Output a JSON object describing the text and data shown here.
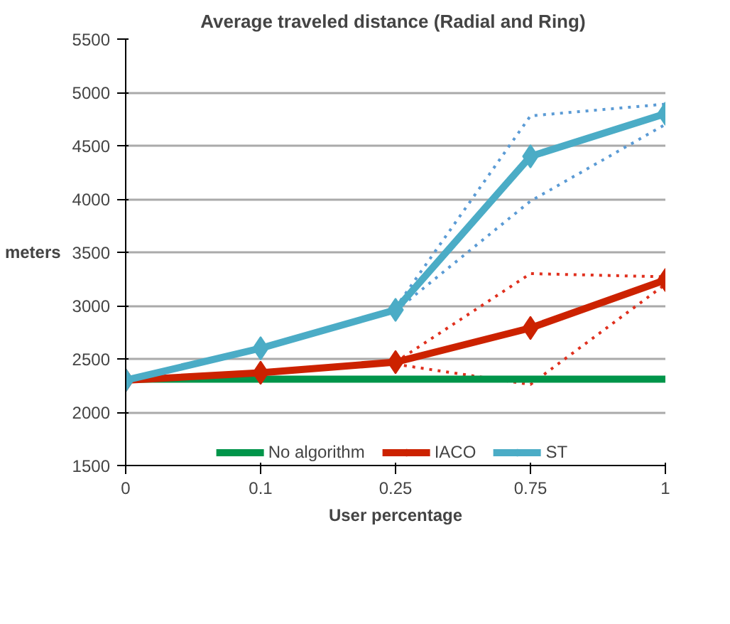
{
  "chart_data": {
    "type": "line",
    "title": "Average traveled distance  (Radial and Ring)",
    "xlabel": "User percentage",
    "ylabel": "meters",
    "categories": [
      "0",
      "0.1",
      "0.25",
      "0.75",
      "1"
    ],
    "ylim": [
      1500,
      5500
    ],
    "yticks": [
      1500,
      2000,
      2500,
      3000,
      3500,
      4000,
      4500,
      5000,
      5500
    ],
    "grid": "y",
    "legend": "bottom",
    "series": [
      {
        "color": "#5b9bd5",
        "values": [
          null,
          null,
          2980,
          4780,
          4890
        ],
        "line_style": "dotted",
        "marker": "none"
      },
      {
        "color": "#5b9bd5",
        "values": [
          null,
          null,
          2950,
          3980,
          4700
        ],
        "line_style": "dotted",
        "marker": "none"
      },
      {
        "color": "#e0301e",
        "values": [
          null,
          null,
          2470,
          3300,
          3270
        ],
        "line_style": "dotted",
        "marker": "none"
      },
      {
        "color": "#e0301e",
        "values": [
          null,
          null,
          2450,
          2260,
          3200
        ],
        "line_style": "dotted",
        "marker": "none"
      },
      {
        "name": "No algorithm",
        "color": "#00954a",
        "values": [
          2310,
          2310,
          2310,
          2310,
          2310
        ],
        "line_style": "solid",
        "marker": "none"
      },
      {
        "name": "IACO",
        "color": "#cc2200",
        "values": [
          2300,
          2370,
          2470,
          2790,
          3240
        ],
        "line_style": "solid",
        "marker": "diamond"
      },
      {
        "name": "ST",
        "color": "#4bacc6",
        "values": [
          2300,
          2600,
          2960,
          4400,
          4800
        ],
        "line_style": "solid",
        "marker": "diamond"
      }
    ]
  }
}
